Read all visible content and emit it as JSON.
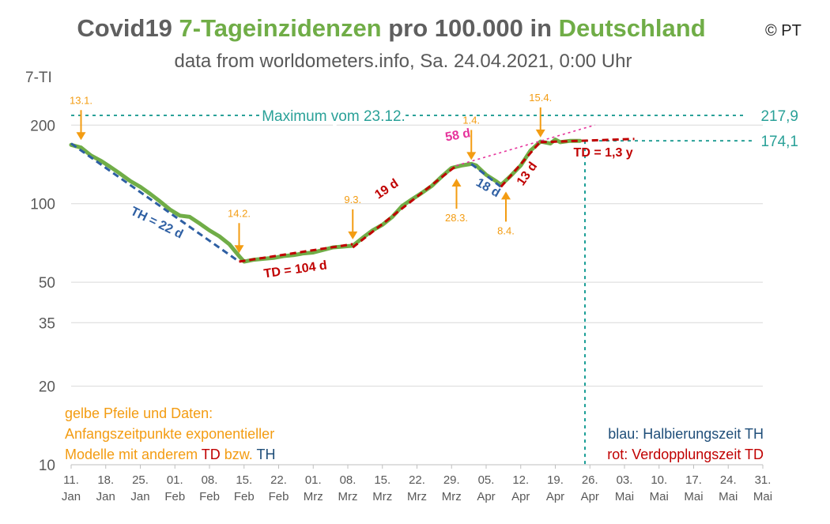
{
  "header": {
    "title_part1": "Covid19 ",
    "title_part2": "7-Tageinzidenzen",
    "title_part3": " pro 100.000 in ",
    "title_part4": "Deutschland",
    "subtitle": "data from worldometers.info, Sa. 24.04.2021, 0:00 Uhr",
    "copyright": "© PT"
  },
  "notes": {
    "left_line1": "gelbe Pfeile und Daten:",
    "left_line2": "Anfangszeitpunkte exponentieller",
    "left_line3_a": "Modelle mit anderem ",
    "left_line3_b": "TD",
    "left_line3_c": " bzw. ",
    "left_line3_d": "TH",
    "right_line1_a": "blau: ",
    "right_line1_b": "Halbierungszeit TH",
    "right_line2_a": "rot:   ",
    "right_line2_b": "Verdopplungszeit TD"
  },
  "colors": {
    "data": "#70ad47",
    "th": "#2e5fa3",
    "td": "#c00000",
    "arrow": "#f39c12",
    "ref": "#2aa198",
    "pink": "#e6339b",
    "grid": "#d9d9d9",
    "axis_text": "#595959",
    "ref_vertical": "#1a9e96"
  },
  "chart_data": {
    "type": "line",
    "title": "Covid19 7-Tageinzidenzen pro 100.000 in Deutschland",
    "ylabel": "7-TI",
    "yscale": "log",
    "ylim": [
      10,
      280
    ],
    "xlim": [
      0,
      140
    ],
    "yticks": [
      10,
      20,
      35,
      50,
      100,
      200
    ],
    "x_ticks": [
      {
        "x": 0,
        "l1": "11.",
        "l2": "Jan"
      },
      {
        "x": 7,
        "l1": "18.",
        "l2": "Jan"
      },
      {
        "x": 14,
        "l1": "25.",
        "l2": "Jan"
      },
      {
        "x": 21,
        "l1": "01.",
        "l2": "Feb"
      },
      {
        "x": 28,
        "l1": "08.",
        "l2": "Feb"
      },
      {
        "x": 35,
        "l1": "15.",
        "l2": "Feb"
      },
      {
        "x": 42,
        "l1": "22.",
        "l2": "Feb"
      },
      {
        "x": 49,
        "l1": "01.",
        "l2": "Mrz"
      },
      {
        "x": 56,
        "l1": "08.",
        "l2": "Mrz"
      },
      {
        "x": 63,
        "l1": "15.",
        "l2": "Mrz"
      },
      {
        "x": 70,
        "l1": "22.",
        "l2": "Mrz"
      },
      {
        "x": 77,
        "l1": "29.",
        "l2": "Mrz"
      },
      {
        "x": 84,
        "l1": "05.",
        "l2": "Apr"
      },
      {
        "x": 91,
        "l1": "12.",
        "l2": "Apr"
      },
      {
        "x": 98,
        "l1": "19.",
        "l2": "Apr"
      },
      {
        "x": 105,
        "l1": "26.",
        "l2": "Apr"
      },
      {
        "x": 112,
        "l1": "03.",
        "l2": "Mai"
      },
      {
        "x": 119,
        "l1": "10.",
        "l2": "Mai"
      },
      {
        "x": 126,
        "l1": "17.",
        "l2": "Mai"
      },
      {
        "x": 133,
        "l1": "24.",
        "l2": "Mai"
      },
      {
        "x": 140,
        "l1": "31.",
        "l2": "Mai"
      }
    ],
    "series": [
      {
        "name": "7-TI",
        "points": [
          [
            0,
            168
          ],
          [
            2,
            164
          ],
          [
            4,
            153
          ],
          [
            6,
            146
          ],
          [
            8,
            138
          ],
          [
            10,
            130
          ],
          [
            12,
            122
          ],
          [
            14,
            116
          ],
          [
            16,
            109
          ],
          [
            18,
            102
          ],
          [
            20,
            95
          ],
          [
            22,
            90
          ],
          [
            24,
            89
          ],
          [
            26,
            84
          ],
          [
            28,
            79
          ],
          [
            30,
            75
          ],
          [
            32,
            70
          ],
          [
            34,
            63
          ],
          [
            35,
            60
          ],
          [
            37,
            61
          ],
          [
            39,
            61.5
          ],
          [
            41,
            62
          ],
          [
            43,
            63
          ],
          [
            45,
            63.5
          ],
          [
            47,
            64.5
          ],
          [
            49,
            65
          ],
          [
            51,
            66.5
          ],
          [
            53,
            68
          ],
          [
            55,
            68.5
          ],
          [
            57,
            69
          ],
          [
            59,
            74
          ],
          [
            61,
            79
          ],
          [
            63,
            83
          ],
          [
            65,
            89
          ],
          [
            67,
            98
          ],
          [
            69,
            104
          ],
          [
            71,
            110
          ],
          [
            73,
            117
          ],
          [
            75,
            127
          ],
          [
            77,
            137
          ],
          [
            79,
            140
          ],
          [
            81,
            142
          ],
          [
            82,
            140
          ],
          [
            84,
            129
          ],
          [
            86,
            122
          ],
          [
            87,
            118
          ],
          [
            89,
            128
          ],
          [
            91,
            140
          ],
          [
            93,
            160
          ],
          [
            95,
            173
          ],
          [
            97,
            170
          ],
          [
            98,
            176
          ],
          [
            99,
            172
          ],
          [
            101,
            174.1
          ],
          [
            103,
            174.1
          ]
        ]
      }
    ],
    "fits": [
      {
        "kind": "TH",
        "label": "TH = 22 d",
        "color_key": "th",
        "x0": 0,
        "y0": 170,
        "x1": 34,
        "y1": 60
      },
      {
        "kind": "TD",
        "label": "TD = 104 d",
        "color_key": "td",
        "x0": 34,
        "y0": 60,
        "x1": 57,
        "y1": 70
      },
      {
        "kind": "TD",
        "label": "19 d",
        "color_key": "td",
        "x0": 57,
        "y0": 68,
        "x1": 78,
        "y1": 140
      },
      {
        "kind": "TD",
        "label": "58 d",
        "color_key": "pink",
        "x0": 78,
        "y0": 140,
        "x1": 106,
        "y1": 200
      },
      {
        "kind": "TH",
        "label": "18 d",
        "color_key": "th",
        "x0": 81,
        "y0": 142,
        "x1": 87,
        "y1": 116
      },
      {
        "kind": "TD",
        "label": "13 d",
        "color_key": "td",
        "x0": 87,
        "y0": 116,
        "x1": 95,
        "y1": 173
      },
      {
        "kind": "TD",
        "label": "TD = 1,3 y",
        "color_key": "td",
        "x0": 95,
        "y0": 172,
        "x1": 114,
        "y1": 177
      }
    ],
    "arrows": [
      {
        "date": "13.1.",
        "x": 2,
        "y_data": 168,
        "dir": "down"
      },
      {
        "date": "14.2.",
        "x": 34,
        "y_data": 62,
        "dir": "down"
      },
      {
        "date": "9.3.",
        "x": 57,
        "y_data": 70,
        "dir": "down"
      },
      {
        "date": "1.4.",
        "x": 81,
        "y_data": 141,
        "dir": "down"
      },
      {
        "date": "15.4.",
        "x": 95,
        "y_data": 172,
        "dir": "down"
      },
      {
        "date": "28.3.",
        "x": 78,
        "y_data": 130,
        "dir": "up"
      },
      {
        "date": "8.4.",
        "x": 88,
        "y_data": 116,
        "dir": "up"
      }
    ],
    "references": [
      {
        "label": "Maximum vom 23.12.",
        "value": 217.9,
        "value_label": "217,9"
      },
      {
        "label": "",
        "value": 174.1,
        "value_label": "174,1"
      }
    ],
    "current_date_x": 104,
    "grid": true
  }
}
